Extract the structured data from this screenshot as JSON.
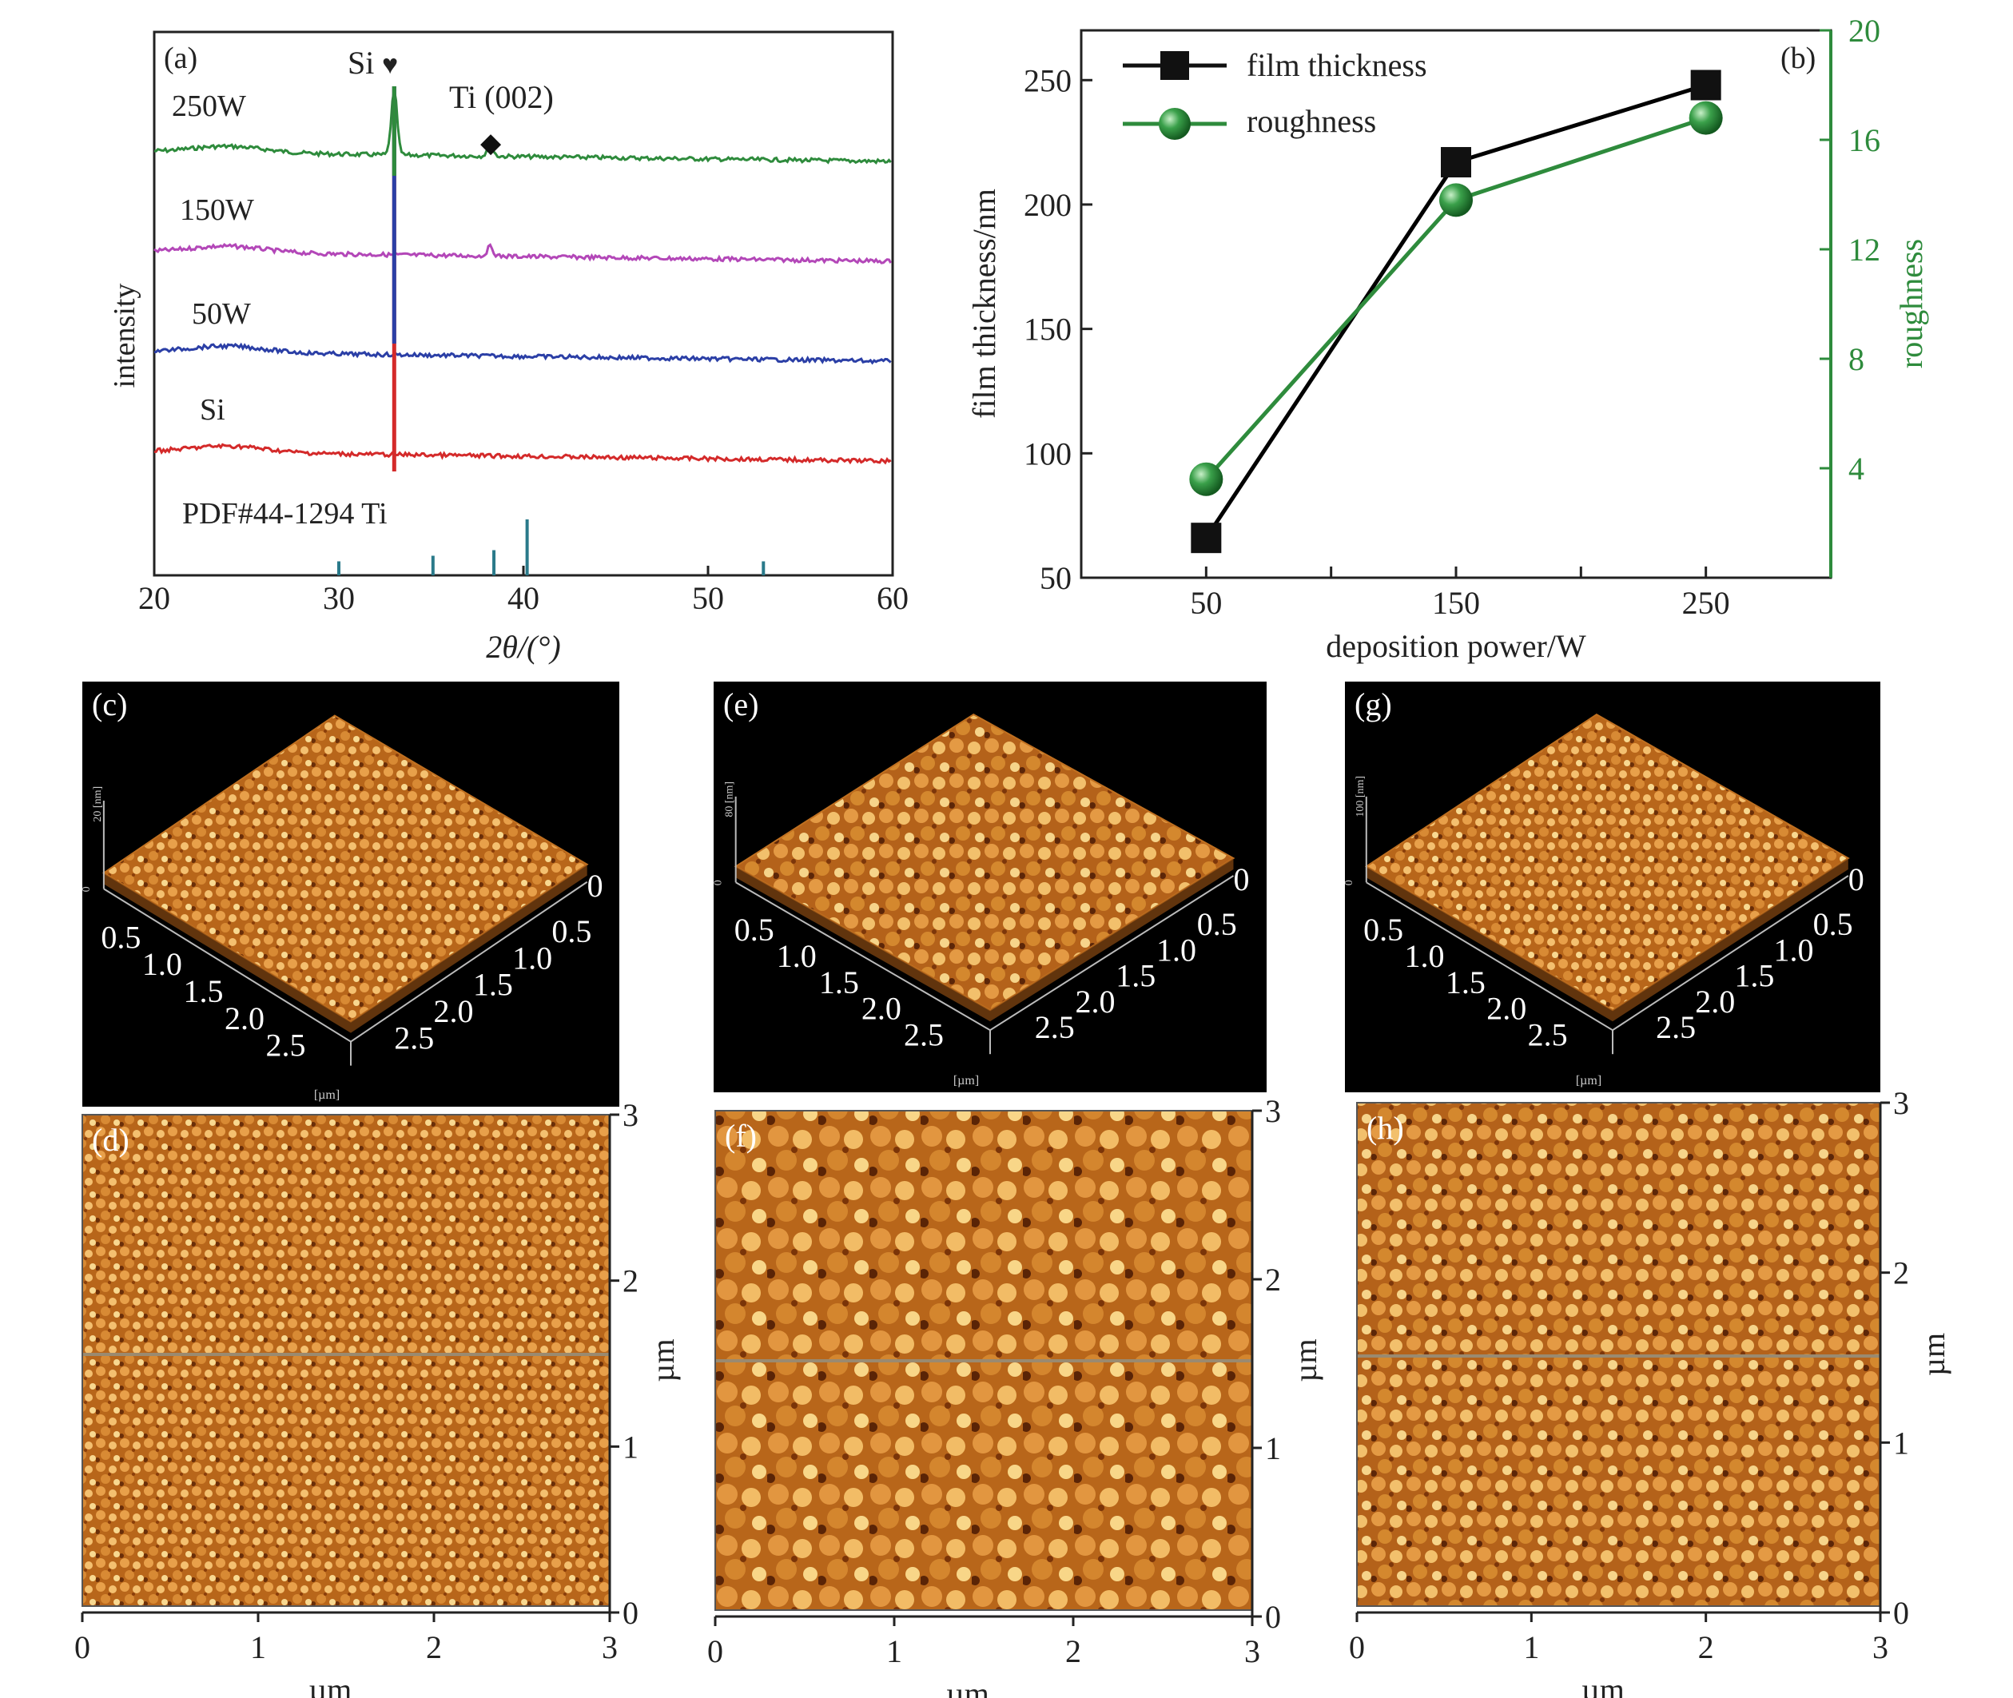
{
  "chart_data": [
    {
      "panel": "(a)",
      "type": "line",
      "xlabel": "2θ/(°)",
      "ylabel": "intensity",
      "xlim": [
        20,
        60
      ],
      "xticks": [
        20,
        30,
        40,
        50,
        60
      ],
      "series_labels": [
        "250W",
        "150W",
        "50W",
        "Si"
      ],
      "reference_label": "PDF#44-1294 Ti",
      "reference_lines": [
        {
          "x": 30.0,
          "h": 0.25
        },
        {
          "x": 35.1,
          "h": 0.35
        },
        {
          "x": 38.4,
          "h": 0.45
        },
        {
          "x": 40.2,
          "h": 1.0
        },
        {
          "x": 53.0,
          "h": 0.25
        }
      ],
      "peak_labels": [
        {
          "text": "Si",
          "symbol": "♥",
          "x": 33.0
        },
        {
          "text": "Ti (002)",
          "symbol": "◆",
          "x": 38.3
        }
      ],
      "series": [
        {
          "label": "250W",
          "color": "#2e8b3c"
        },
        {
          "label": "150W",
          "color": "#b347b8"
        },
        {
          "label": "50W",
          "color": "#2b3fa6"
        },
        {
          "label": "Si",
          "color": "#d42a2a"
        }
      ],
      "grid": false
    },
    {
      "panel": "(b)",
      "type": "line",
      "xlabel": "deposition power/W",
      "ylabel": "film thickness/nm",
      "y2label": "roughness",
      "categories": [
        50,
        150,
        250
      ],
      "xlim": [
        0,
        300
      ],
      "ylim": [
        50,
        270
      ],
      "y2lim": [
        0,
        20
      ],
      "yticks": [
        50,
        100,
        150,
        200,
        250
      ],
      "y2ticks": [
        4,
        8,
        12,
        16,
        20
      ],
      "legend_position": "top-left",
      "series": [
        {
          "name": "film thickness",
          "axis": "left",
          "color": "#000000",
          "marker": "square",
          "values": [
            66,
            217,
            248
          ]
        },
        {
          "name": "roughness",
          "axis": "right",
          "color": "#2e8b3c",
          "marker": "sphere",
          "values": [
            3.6,
            13.8,
            16.8
          ]
        }
      ],
      "grid": false
    },
    {
      "panel": "(c)",
      "type": "heatmap",
      "view": "3d",
      "z_tick": "20",
      "z_unit": "[nm]",
      "axis_ticks": [
        "0.5",
        "1.0",
        "1.5",
        "2.0",
        "2.5"
      ],
      "far_tick": "0",
      "unit": "[µm]"
    },
    {
      "panel": "(e)",
      "type": "heatmap",
      "view": "3d",
      "z_tick": "80",
      "z_unit": "[nm]",
      "axis_ticks": [
        "0.5",
        "1.0",
        "1.5",
        "2.0",
        "2.5"
      ],
      "far_tick": "0",
      "unit": "[µm]"
    },
    {
      "panel": "(g)",
      "type": "heatmap",
      "view": "3d",
      "z_tick": "100",
      "z_unit": "[nm]",
      "axis_ticks": [
        "0.5",
        "1.0",
        "1.5",
        "2.0",
        "2.5"
      ],
      "far_tick": "0",
      "unit": "[µm]"
    },
    {
      "panel": "(d)",
      "type": "heatmap",
      "view": "2d",
      "xticks": [
        "0",
        "1",
        "2",
        "3"
      ],
      "yticks": [
        "0",
        "1",
        "2",
        "3"
      ],
      "xlabel": "µm",
      "ylabel": "µm"
    },
    {
      "panel": "(f)",
      "type": "heatmap",
      "view": "2d",
      "xticks": [
        "0",
        "1",
        "2",
        "3"
      ],
      "yticks": [
        "0",
        "1",
        "2",
        "3"
      ],
      "xlabel": "µm",
      "ylabel": "µm"
    },
    {
      "panel": "(h)",
      "type": "heatmap",
      "view": "2d",
      "xticks": [
        "0",
        "1",
        "2",
        "3"
      ],
      "yticks": [
        "0",
        "1",
        "2",
        "3"
      ],
      "xlabel": "µm",
      "ylabel": "µm"
    }
  ]
}
